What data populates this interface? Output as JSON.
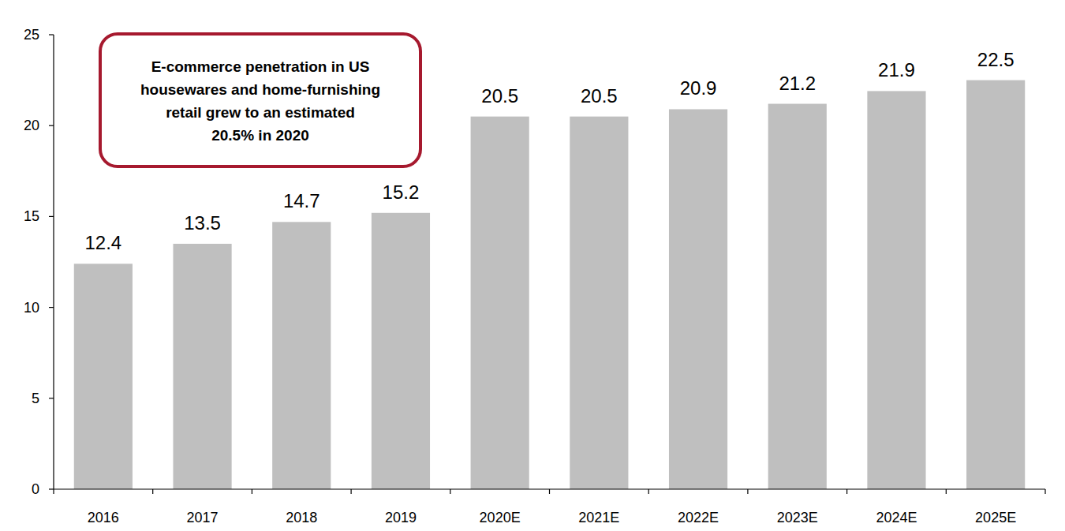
{
  "chart_data": {
    "type": "bar",
    "annotation": [
      "E-commerce penetration in US",
      "housewares and home-furnishing",
      "retail grew to an estimated",
      "20.5% in 2020"
    ],
    "categories": [
      "2016",
      "2017",
      "2018",
      "2019",
      "2020E",
      "2021E",
      "2022E",
      "2023E",
      "2024E",
      "2025E"
    ],
    "values": [
      12.4,
      13.5,
      14.7,
      15.2,
      20.5,
      20.5,
      20.9,
      21.2,
      21.9,
      22.5
    ],
    "color": "#bfbfbf",
    "ylim": [
      0,
      25
    ],
    "yticks": [
      0,
      5,
      10,
      15,
      20,
      25
    ],
    "grid": false,
    "data_labels": true
  }
}
